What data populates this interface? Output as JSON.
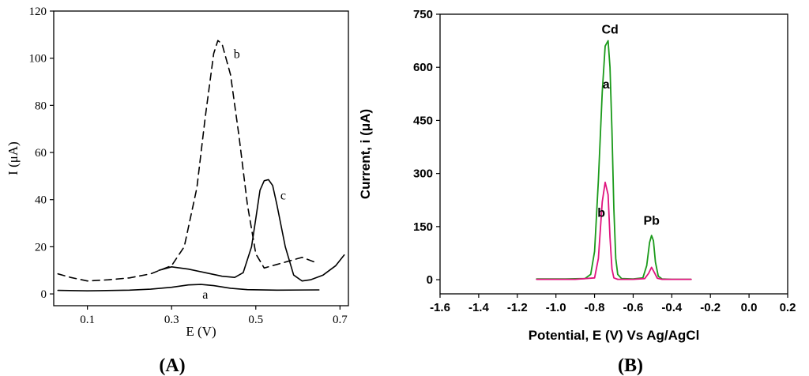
{
  "panels": {
    "A": {
      "caption": "(A)",
      "caption_letter": "A"
    },
    "B": {
      "caption": "(B)",
      "caption_letter": "B"
    }
  },
  "chart_data": [
    {
      "id": "A",
      "type": "line",
      "title": "",
      "xlabel": "E (V)",
      "ylabel": "I (μA)",
      "xlim": [
        0.02,
        0.72
      ],
      "ylim": [
        -5,
        120
      ],
      "xticks": [
        "0.1",
        "0.3",
        "0.5",
        "0.7"
      ],
      "xtick_values": [
        0.1,
        0.3,
        0.5,
        0.7
      ],
      "yticks": [
        "0",
        "20",
        "40",
        "60",
        "80",
        "100",
        "120"
      ],
      "ytick_values": [
        0,
        20,
        40,
        60,
        80,
        100,
        120
      ],
      "grid": false,
      "legend": "none",
      "series": [
        {
          "name": "a",
          "style": "solid",
          "color": "#000000",
          "label_at": [
            0.38,
            -2
          ],
          "x": [
            0.03,
            0.1,
            0.2,
            0.25,
            0.3,
            0.34,
            0.37,
            0.4,
            0.44,
            0.48,
            0.55,
            0.65
          ],
          "y": [
            1.5,
            1.3,
            1.6,
            2.0,
            2.8,
            3.8,
            4.0,
            3.5,
            2.4,
            1.8,
            1.6,
            1.7
          ]
        },
        {
          "name": "b",
          "style": "dashed",
          "color": "#000000",
          "label_at": [
            0.455,
            100
          ],
          "x": [
            0.03,
            0.06,
            0.1,
            0.15,
            0.2,
            0.25,
            0.3,
            0.33,
            0.36,
            0.38,
            0.4,
            0.41,
            0.42,
            0.44,
            0.46,
            0.48,
            0.5,
            0.52,
            0.55,
            0.58,
            0.61,
            0.64
          ],
          "y": [
            8.5,
            7,
            5.5,
            6,
            6.8,
            8.5,
            12,
            20,
            45,
            75,
            102,
            107.5,
            106,
            93,
            67,
            38,
            17,
            11,
            12.5,
            14,
            15.5,
            13.5
          ]
        },
        {
          "name": "c",
          "style": "solid",
          "color": "#000000",
          "label_at": [
            0.565,
            40
          ],
          "x": [
            0.27,
            0.3,
            0.34,
            0.38,
            0.42,
            0.45,
            0.47,
            0.49,
            0.5,
            0.51,
            0.52,
            0.53,
            0.54,
            0.55,
            0.57,
            0.59,
            0.61,
            0.63,
            0.66,
            0.69,
            0.71
          ],
          "y": [
            10,
            11.5,
            10.5,
            9,
            7.5,
            7,
            9,
            20,
            32,
            44,
            48,
            48.5,
            46,
            38,
            20,
            8,
            5.5,
            6,
            8,
            12,
            16.5
          ]
        }
      ]
    },
    {
      "id": "B",
      "type": "line",
      "title": "",
      "xlabel": "Potential, E (V) Vs Ag/AgCl",
      "ylabel": "Current, i (μA)",
      "xlim": [
        -1.6,
        0.2
      ],
      "ylim": [
        -40,
        750
      ],
      "xticks": [
        "-1.6",
        "-1.4",
        "-1.2",
        "-1.0",
        "-0.8",
        "-0.6",
        "-0.4",
        "-0.2",
        "0.0",
        "0.2"
      ],
      "xtick_values": [
        -1.6,
        -1.4,
        -1.2,
        -1.0,
        -0.8,
        -0.6,
        -0.4,
        -0.2,
        0.0,
        0.2
      ],
      "yticks": [
        "0",
        "150",
        "300",
        "450",
        "600",
        "750"
      ],
      "ytick_values": [
        0,
        150,
        300,
        450,
        600,
        750
      ],
      "grid": false,
      "legend": "none",
      "annotations": [
        {
          "text": "Cd",
          "x": -0.72,
          "y": 695
        },
        {
          "text": "Pb",
          "x": -0.505,
          "y": 155
        }
      ],
      "series": [
        {
          "name": "a",
          "color": "#1a9a1a",
          "label_at": [
            -0.74,
            540
          ],
          "x": [
            -1.1,
            -0.95,
            -0.85,
            -0.82,
            -0.8,
            -0.78,
            -0.76,
            -0.745,
            -0.73,
            -0.72,
            -0.71,
            -0.7,
            -0.69,
            -0.68,
            -0.66,
            -0.6,
            -0.55,
            -0.53,
            -0.515,
            -0.505,
            -0.495,
            -0.485,
            -0.47,
            -0.45,
            -0.4,
            -0.3
          ],
          "y": [
            2,
            2,
            3,
            15,
            80,
            280,
            530,
            660,
            675,
            600,
            420,
            200,
            60,
            15,
            3,
            2,
            5,
            40,
            105,
            125,
            110,
            50,
            10,
            2,
            1,
            1
          ]
        },
        {
          "name": "b",
          "color": "#e0147f",
          "label_at": [
            -0.765,
            178
          ],
          "x": [
            -1.1,
            -0.9,
            -0.8,
            -0.78,
            -0.76,
            -0.745,
            -0.73,
            -0.72,
            -0.71,
            -0.7,
            -0.68,
            -0.6,
            -0.54,
            -0.52,
            -0.505,
            -0.49,
            -0.475,
            -0.45,
            -0.3
          ],
          "y": [
            1,
            1,
            5,
            60,
            220,
            275,
            240,
            120,
            30,
            5,
            1,
            1,
            3,
            18,
            35,
            20,
            4,
            1,
            1
          ]
        }
      ]
    }
  ]
}
